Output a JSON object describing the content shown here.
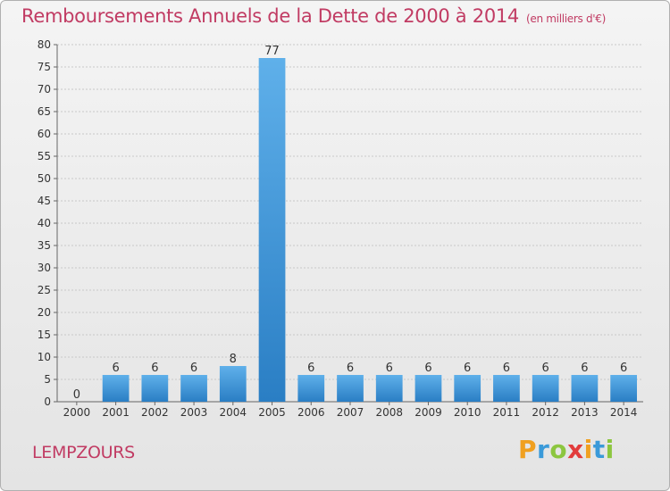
{
  "title": "Remboursements Annuels de la Dette de 2000 à 2014",
  "subtitle": "(en milliers d'€)",
  "commune": "LEMPZOURS",
  "logo": {
    "letters": [
      "P",
      "r",
      "o",
      "x",
      "i",
      "t",
      "i"
    ],
    "colors": [
      "#f0a020",
      "#3a9ad9",
      "#8cc63f",
      "#e23b3b",
      "#f0a020",
      "#3a9ad9",
      "#8cc63f"
    ]
  },
  "colors": {
    "title": "#c13b63",
    "bar_top": "#5fb0ea",
    "bar_bottom": "#2a7ec4",
    "grid": "#c8c8c8"
  },
  "chart_data": {
    "type": "bar",
    "title": "Remboursements Annuels de la Dette de 2000 à 2014",
    "subtitle": "(en milliers d'€)",
    "categories": [
      "2000",
      "2001",
      "2002",
      "2003",
      "2004",
      "2005",
      "2006",
      "2007",
      "2008",
      "2009",
      "2010",
      "2011",
      "2012",
      "2013",
      "2014"
    ],
    "values": [
      0,
      6,
      6,
      6,
      8,
      77,
      6,
      6,
      6,
      6,
      6,
      6,
      6,
      6,
      6
    ],
    "data_labels": [
      "0",
      "6",
      "6",
      "6",
      "8",
      "77",
      "6",
      "6",
      "6",
      "6",
      "6",
      "6",
      "6",
      "6",
      "6"
    ],
    "ylim": [
      0,
      80
    ],
    "yticks": [
      0,
      5,
      10,
      15,
      20,
      25,
      30,
      35,
      40,
      45,
      50,
      55,
      60,
      65,
      70,
      75,
      80
    ],
    "grid": true,
    "xlabel": "",
    "ylabel": ""
  }
}
